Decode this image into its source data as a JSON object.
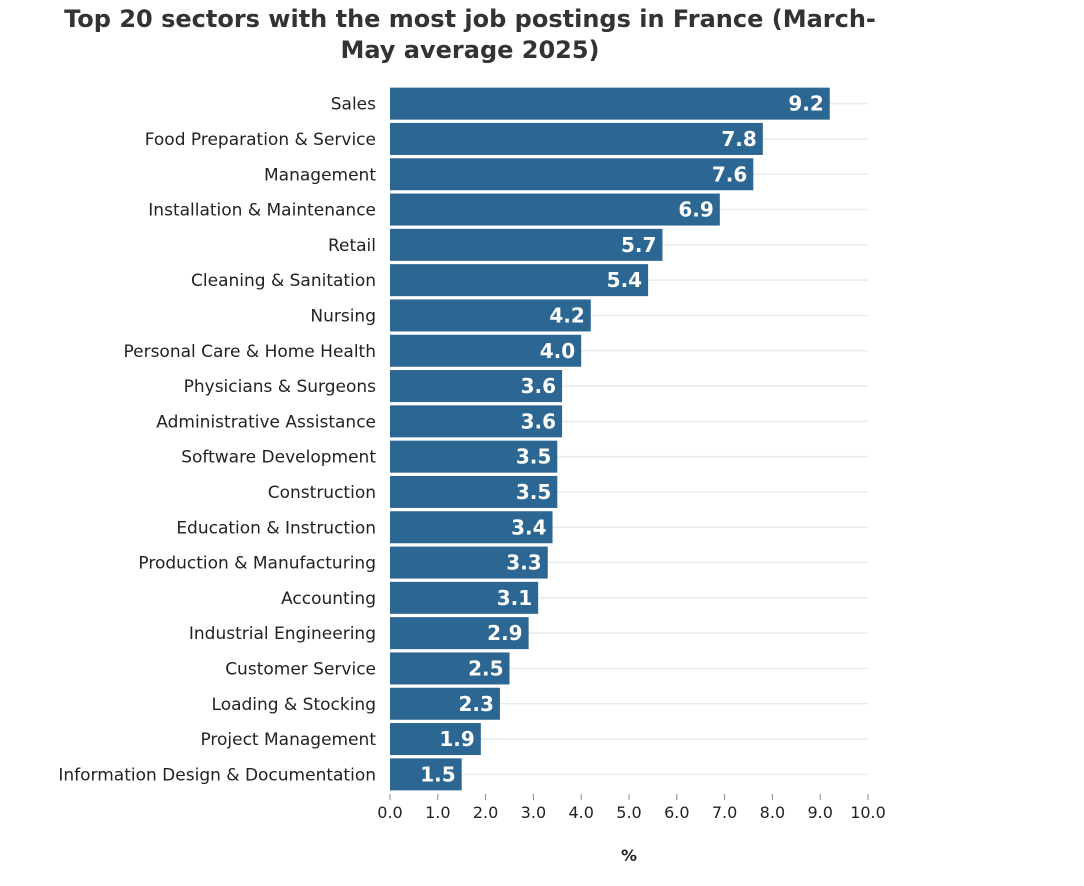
{
  "chart_data": {
    "type": "bar",
    "orientation": "horizontal",
    "title": "Top 20 sectors with the most job postings in France (March-May average 2025)",
    "xlabel": "%",
    "ylabel": "",
    "xlim": [
      0,
      10
    ],
    "xticks": [
      "0.0",
      "1.0",
      "2.0",
      "3.0",
      "4.0",
      "5.0",
      "6.0",
      "7.0",
      "8.0",
      "9.0",
      "10.0"
    ],
    "grid": true,
    "bar_color": "#2c6693",
    "categories": [
      "Sales",
      "Food Preparation & Service",
      "Management",
      "Installation & Maintenance",
      "Retail",
      "Cleaning & Sanitation",
      "Nursing",
      "Personal Care & Home Health",
      "Physicians & Surgeons",
      "Administrative Assistance",
      "Software Development",
      "Construction",
      "Education & Instruction",
      "Production & Manufacturing",
      "Accounting",
      "Industrial Engineering",
      "Customer Service",
      "Loading & Stocking",
      "Project Management",
      "Information Design & Documentation"
    ],
    "values": [
      9.2,
      7.8,
      7.6,
      6.9,
      5.7,
      5.4,
      4.2,
      4.0,
      3.6,
      3.6,
      3.5,
      3.5,
      3.4,
      3.3,
      3.1,
      2.9,
      2.5,
      2.3,
      1.9,
      1.5
    ],
    "data_labels": [
      "9.2",
      "7.8",
      "7.6",
      "6.9",
      "5.7",
      "5.4",
      "4.2",
      "4.0",
      "3.6",
      "3.6",
      "3.5",
      "3.5",
      "3.4",
      "3.3",
      "3.1",
      "2.9",
      "2.5",
      "2.3",
      "1.9",
      "1.5"
    ]
  }
}
